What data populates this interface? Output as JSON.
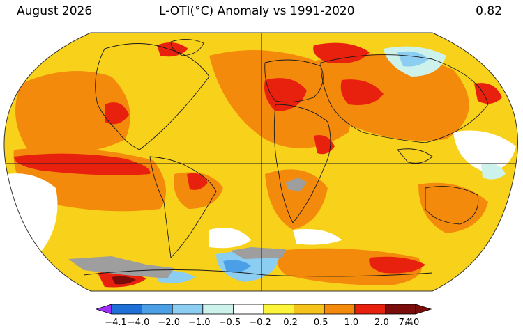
{
  "header": {
    "date": "August 2026",
    "title": "L-OTI(°C) Anomaly vs 1991-2020",
    "global_mean": "0.82"
  },
  "legend": {
    "ticks": [
      "−4.1",
      "−4.0",
      "−2.0",
      "−1.0",
      "−0.5",
      "−0.2",
      "0.2",
      "0.5",
      "1.0",
      "2.0",
      "4.0",
      "7.4"
    ],
    "colors": {
      "below_min": "#9b30ff",
      "bins": [
        "#1e6fd6",
        "#4a9fe6",
        "#8ccdf2",
        "#cdf2ec",
        "#ffffff",
        "#fbf43a",
        "#f6c21c",
        "#f48a0c",
        "#e8200e",
        "#7a0c0c"
      ]
    }
  },
  "map": {
    "colors": {
      "background": "#ffffff",
      "land_outline": "#1a1a1a",
      "no_data": "#9e9e9e",
      "ocean_base": "#f8d21a"
    }
  }
}
